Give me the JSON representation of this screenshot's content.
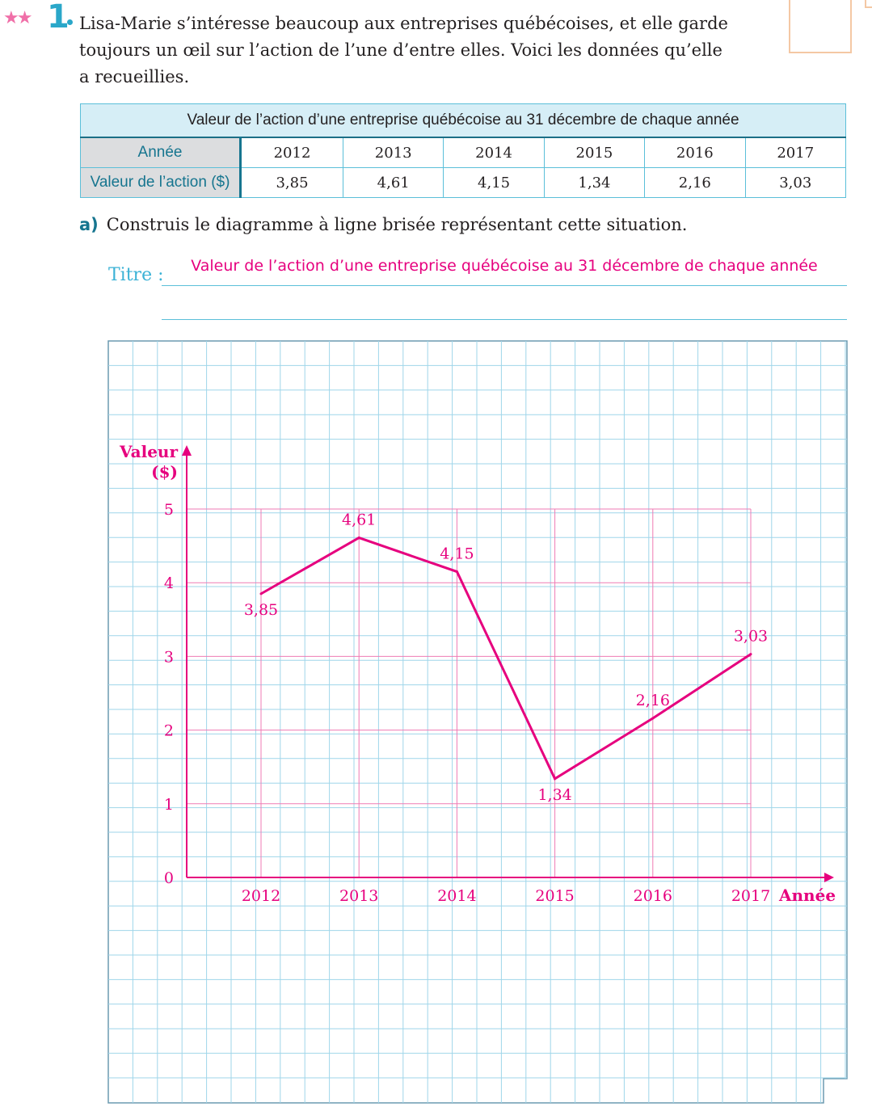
{
  "exercise": {
    "stars": "★★",
    "number": "1"
  },
  "intro_lines": [
    "Lisa-Marie s’intéresse beaucoup aux entreprises québécoises, et elle garde",
    "toujours un œil sur l’action de l’une d’entre elles. Voici les données qu’elle",
    "a recueillies."
  ],
  "table": {
    "caption": "Valeur de l’action d’une entreprise québécoise au 31 décembre de chaque année",
    "row_headers": [
      "Année",
      "Valeur de l’action ($)"
    ],
    "years": [
      "2012",
      "2013",
      "2014",
      "2015",
      "2016",
      "2017"
    ],
    "values": [
      "3,85",
      "4,61",
      "4,15",
      "1,34",
      "2,16",
      "3,03"
    ]
  },
  "question": {
    "label": "a)",
    "text": "Construis le diagramme à ligne brisée représentant cette situation."
  },
  "titre": {
    "label": "Titre :",
    "value": "Valeur de l’action d’une entreprise québécoise au 31 décembre de chaque année"
  },
  "colors": {
    "accent": "#e6007e",
    "grid": "#9fd6ea",
    "teal": "#16758f"
  },
  "chart_data": {
    "type": "line",
    "x": [
      "2012",
      "2013",
      "2014",
      "2015",
      "2016",
      "2017"
    ],
    "values": [
      3.85,
      4.61,
      4.15,
      1.34,
      2.16,
      3.03
    ],
    "data_labels": [
      "3,85",
      "4,61",
      "4,15",
      "1,34",
      "2,16",
      "3,03"
    ],
    "xlabel": "Année",
    "ylabel_lines": [
      "Valeur",
      "($)"
    ],
    "yticks": [
      0,
      1,
      2,
      3,
      4,
      5
    ],
    "ylim": [
      0,
      5
    ]
  }
}
